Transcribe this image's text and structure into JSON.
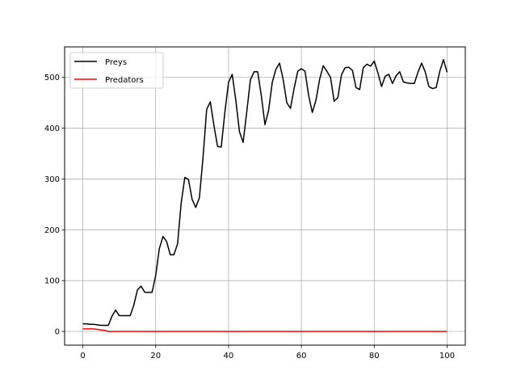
{
  "chart_data": {
    "type": "line",
    "title": "",
    "xlabel": "",
    "ylabel": "",
    "xlim": [
      -5,
      105
    ],
    "ylim": [
      -27,
      560
    ],
    "xticks": [
      0,
      20,
      40,
      60,
      80,
      100
    ],
    "yticks": [
      0,
      100,
      200,
      300,
      400,
      500
    ],
    "grid": true,
    "legend": "top-left",
    "x": [
      0,
      1,
      2,
      3,
      4,
      5,
      6,
      7,
      8,
      9,
      10,
      11,
      12,
      13,
      14,
      15,
      16,
      17,
      18,
      19,
      20,
      21,
      22,
      23,
      24,
      25,
      26,
      27,
      28,
      29,
      30,
      31,
      32,
      33,
      34,
      35,
      36,
      37,
      38,
      39,
      40,
      41,
      42,
      43,
      44,
      45,
      46,
      47,
      48,
      49,
      50,
      51,
      52,
      53,
      54,
      55,
      56,
      57,
      58,
      59,
      60,
      61,
      62,
      63,
      64,
      65,
      66,
      67,
      68,
      69,
      70,
      71,
      72,
      73,
      74,
      75,
      76,
      77,
      78,
      79,
      80,
      81,
      82,
      83,
      84,
      85,
      86,
      87,
      88,
      89,
      90,
      91,
      92,
      93,
      94,
      95,
      96,
      97,
      98,
      99,
      100
    ],
    "series": [
      {
        "name": "Preys",
        "color": "#000000",
        "values": [
          15,
          15,
          14,
          14,
          13,
          12,
          12,
          12,
          30,
          42,
          31,
          31,
          31,
          31,
          52,
          82,
          89,
          77,
          77,
          77,
          110,
          163,
          187,
          177,
          151,
          151,
          172,
          253,
          303,
          299,
          260,
          244,
          263,
          343,
          437,
          452,
          405,
          364,
          363,
          432,
          490,
          506,
          455,
          393,
          372,
          432,
          495,
          511,
          511,
          464,
          407,
          435,
          490,
          516,
          528,
          496,
          450,
          439,
          478,
          512,
          517,
          512,
          464,
          431,
          455,
          496,
          523,
          512,
          500,
          453,
          460,
          505,
          519,
          520,
          514,
          480,
          476,
          519,
          526,
          522,
          532,
          509,
          482,
          502,
          506,
          488,
          503,
          511,
          491,
          489,
          488,
          488,
          510,
          528,
          511,
          482,
          478,
          480,
          512,
          535,
          510
        ]
      },
      {
        "name": "Predators",
        "color": "#ff0000",
        "values": [
          5,
          5,
          5,
          5,
          4,
          3,
          2,
          0,
          0,
          0,
          0,
          0,
          0,
          0,
          0,
          0,
          0,
          0,
          0,
          0,
          0,
          0,
          0,
          0,
          0,
          0,
          0,
          0,
          0,
          0,
          0,
          0,
          0,
          0,
          0,
          0,
          0,
          0,
          0,
          0,
          0,
          0,
          0,
          0,
          0,
          0,
          0,
          0,
          0,
          0,
          0,
          0,
          0,
          0,
          0,
          0,
          0,
          0,
          0,
          0,
          0,
          0,
          0,
          0,
          0,
          0,
          0,
          0,
          0,
          0,
          0,
          0,
          0,
          0,
          0,
          0,
          0,
          0,
          0,
          0,
          0,
          0,
          0,
          0,
          0,
          0,
          0,
          0,
          0,
          0,
          0,
          0,
          0,
          0,
          0,
          0,
          0,
          0,
          0,
          0,
          0
        ]
      }
    ]
  }
}
